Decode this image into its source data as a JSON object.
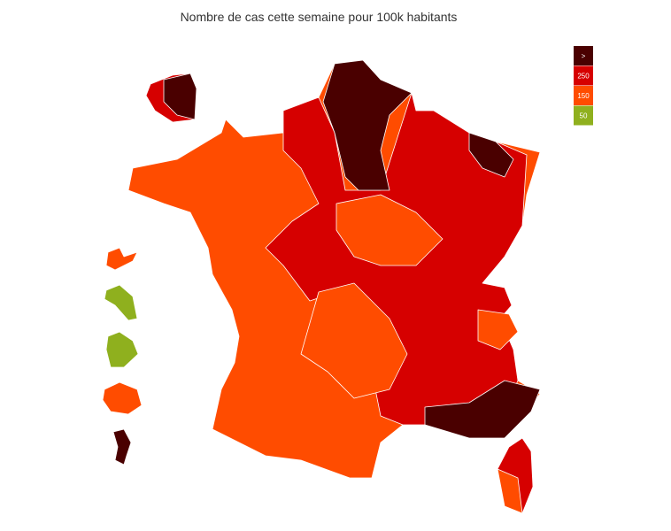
{
  "title": "Nombre de cas cette semaine pour 100k habitants",
  "legend": [
    {
      "label": ">",
      "color": "#4a0000"
    },
    {
      "label": 250,
      "color": "#d60000"
    },
    {
      "label": 150,
      "color": "#ff4c00"
    },
    {
      "label": 50,
      "color": "#8fb01e"
    }
  ]
}
